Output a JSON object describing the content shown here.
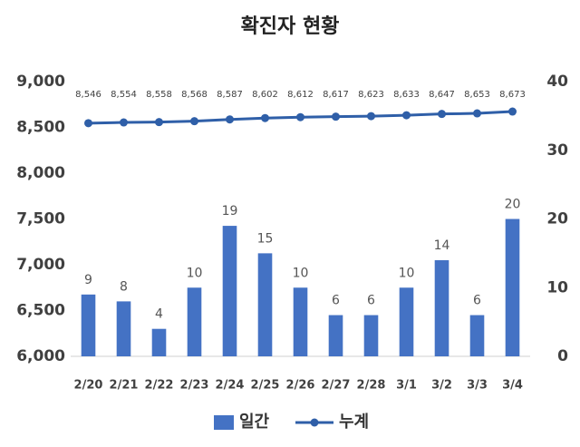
{
  "chart_data": {
    "type": "bar",
    "title": "확진자 현황",
    "categories": [
      "2/20",
      "2/21",
      "2/22",
      "2/23",
      "2/24",
      "2/25",
      "2/26",
      "2/27",
      "2/28",
      "3/1",
      "3/2",
      "3/3",
      "3/4"
    ],
    "series": [
      {
        "name": "일간",
        "type": "bar",
        "axis": "y2",
        "color": "#4472c4",
        "values": [
          9,
          8,
          4,
          10,
          19,
          15,
          10,
          6,
          6,
          10,
          14,
          6,
          20
        ]
      },
      {
        "name": "누계",
        "type": "line",
        "axis": "y",
        "color": "#2f5fa8",
        "values": [
          8546,
          8554,
          8558,
          8568,
          8587,
          8602,
          8612,
          8617,
          8623,
          8633,
          8647,
          8653,
          8673
        ],
        "value_labels": [
          "8,546",
          "8,554",
          "8,558",
          "8,568",
          "8,587",
          "8,602",
          "8,612",
          "8,617",
          "8,623",
          "8,633",
          "8,647",
          "8,653",
          "8,673"
        ]
      }
    ],
    "ylim": [
      6000,
      9000
    ],
    "yticks": [
      {
        "value": 6000,
        "label": "6,000"
      },
      {
        "value": 6500,
        "label": "6,500"
      },
      {
        "value": 7000,
        "label": "7,000"
      },
      {
        "value": 7500,
        "label": "7,500"
      },
      {
        "value": 8000,
        "label": "8,000"
      },
      {
        "value": 8500,
        "label": "8,500"
      },
      {
        "value": 9000,
        "label": "9,000"
      }
    ],
    "y2lim": [
      0,
      40
    ],
    "y2ticks": [
      0,
      10,
      20,
      30,
      40
    ],
    "legend": "bottom"
  }
}
